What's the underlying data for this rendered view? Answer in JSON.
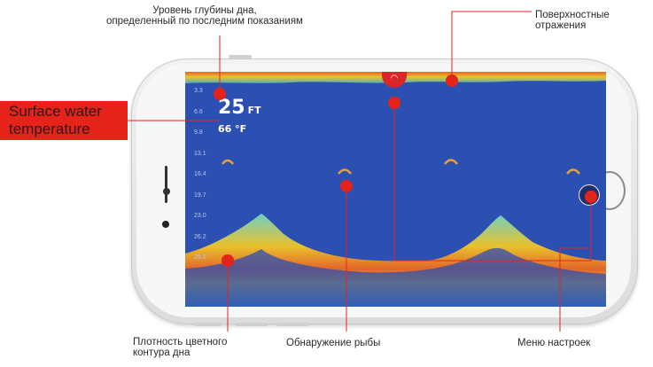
{
  "annotations": {
    "bottom_depth_line1": "Уровень глубины дна,",
    "bottom_depth_line2": "определенный по последним показаниям",
    "surface_reflections_line1": "Поверхностные",
    "surface_reflections_line2": "отражения",
    "surface_temp_line1": "Surface water",
    "surface_temp_line2": "temperature",
    "color_density_line1": "Плотность цветного",
    "color_density_line2": "контура дна",
    "fish_detection": "Обнаружение рыбы",
    "settings_menu": "Меню настроек"
  },
  "screen": {
    "depth_value": "25",
    "depth_unit": "FT",
    "temperature": "66 °F",
    "depth_scale": [
      "3.3",
      "6.6",
      "9.8",
      "13.1",
      "16.4",
      "19.7",
      "23.0",
      "26.2",
      "29.5"
    ]
  },
  "icons": {
    "wifi": "wifi-icon",
    "settings": "sliders-icon"
  },
  "colors": {
    "accent": "#e5231b",
    "water": "#2c4fb2",
    "bottom_contour": "#e6b12c",
    "surface_band": "#e2832a"
  }
}
